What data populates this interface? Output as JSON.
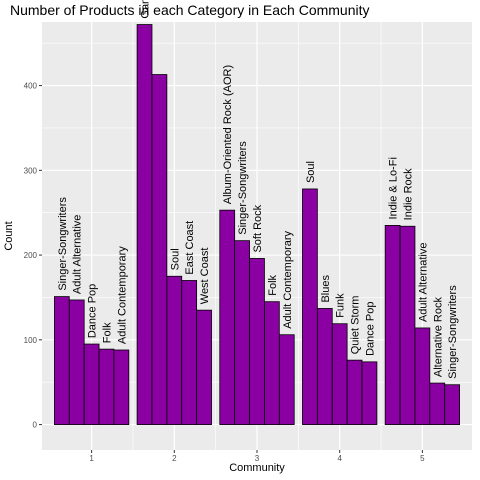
{
  "chart_data": {
    "type": "bar",
    "title": "Number of Products in each Category in Each Community",
    "xlabel": "Community",
    "ylabel": "Count",
    "ylim": [
      -30,
      475
    ],
    "yticks": [
      0,
      100,
      200,
      300,
      400
    ],
    "grid": true,
    "bar_color": "#8B00A3",
    "bar_edge_color": "#000000",
    "panel_color": "#EBEBEB",
    "groups": [
      {
        "community": "1",
        "bars": [
          {
            "label": "Singer-Songwriters",
            "value": 151
          },
          {
            "label": "Adult Alternative",
            "value": 147
          },
          {
            "label": "Dance Pop",
            "value": 95
          },
          {
            "label": "Folk",
            "value": 89
          },
          {
            "label": "Adult Contemporary",
            "value": 88
          }
        ]
      },
      {
        "community": "2",
        "bars": [
          {
            "label": "Gangsta",
            "value": 472
          },
          {
            "label": "",
            "value": 413
          },
          {
            "label": "Soul",
            "value": 175
          },
          {
            "label": "East Coast",
            "value": 170
          },
          {
            "label": "West Coast",
            "value": 135
          }
        ]
      },
      {
        "community": "3",
        "bars": [
          {
            "label": "Album-Oriented Rock (AOR)",
            "value": 253
          },
          {
            "label": "Singer-Songwriters",
            "value": 217
          },
          {
            "label": "Soft Rock",
            "value": 196
          },
          {
            "label": "Folk",
            "value": 145
          },
          {
            "label": "Adult Contemporary",
            "value": 106
          }
        ]
      },
      {
        "community": "4",
        "bars": [
          {
            "label": "Soul",
            "value": 278
          },
          {
            "label": "Blues",
            "value": 137
          },
          {
            "label": "Funk",
            "value": 119
          },
          {
            "label": "Quiet Storm",
            "value": 76
          },
          {
            "label": "Dance Pop",
            "value": 74
          }
        ]
      },
      {
        "community": "5",
        "bars": [
          {
            "label": "Indie & Lo-Fi",
            "value": 235
          },
          {
            "label": "Indie Rock",
            "value": 234
          },
          {
            "label": "Adult Alternative",
            "value": 114
          },
          {
            "label": "Alternative Rock",
            "value": 49
          },
          {
            "label": "Singer-Songwriters",
            "value": 47
          }
        ]
      }
    ]
  }
}
